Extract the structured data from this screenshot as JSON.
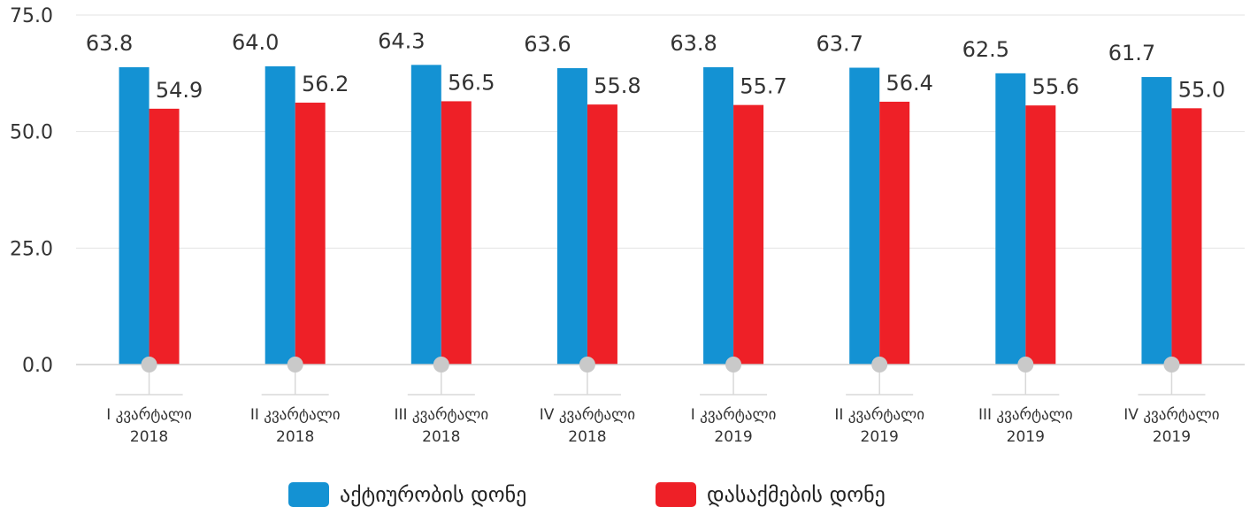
{
  "chart_data": {
    "type": "bar",
    "categories": [
      [
        "I კვარტალი",
        "2018"
      ],
      [
        "II კვარტალი",
        "2018"
      ],
      [
        "III კვარტალი",
        "2018"
      ],
      [
        "IV კვარტალი",
        "2018"
      ],
      [
        "I კვარტალი",
        "2019"
      ],
      [
        "II კვარტალი",
        "2019"
      ],
      [
        "III კვარტალი",
        "2019"
      ],
      [
        "IV კვარტალი",
        "2019"
      ]
    ],
    "series": [
      {
        "name": "აქტიურობის დონე",
        "color": "#1492d3",
        "values": [
          63.8,
          64.0,
          64.3,
          63.6,
          63.8,
          63.7,
          62.5,
          61.7
        ]
      },
      {
        "name": "დასაქმების დონე",
        "color": "#ee2027",
        "values": [
          54.9,
          56.2,
          56.5,
          55.8,
          55.7,
          56.4,
          55.6,
          55.0
        ]
      }
    ],
    "ylim": [
      0,
      75
    ],
    "yticks": [
      "0.0",
      "25.0",
      "50.0",
      "75.0"
    ],
    "grid": true,
    "legend_position": "bottom"
  }
}
